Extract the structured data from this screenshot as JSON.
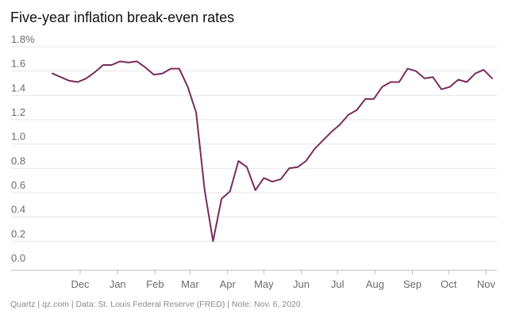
{
  "header": {
    "title": "Five-year inflation break-even rates"
  },
  "footer": {
    "source": "Quartz | qz.com | Data: St. Louis Federal Reserve (FRED) | Note: Nov. 6, 2020"
  },
  "colors": {
    "line": "#7a2c5a",
    "grid": "#e6e6e6",
    "axis": "#bdbdbd",
    "text": "#6b6b6b"
  },
  "chart_data": {
    "type": "line",
    "title": "Five-year inflation break-even rates",
    "xlabel": "",
    "ylabel": "",
    "ylim": [
      0,
      1.8
    ],
    "yticks": [
      0.0,
      0.2,
      0.4,
      0.6,
      0.8,
      1.0,
      1.2,
      1.4,
      1.6,
      1.8
    ],
    "ytick_labels": [
      "0.0",
      "0.2",
      "0.4",
      "0.6",
      "0.8",
      "1.0",
      "1.2",
      "1.4",
      "1.6",
      "1.8%"
    ],
    "xlim": [
      "2019-11-08",
      "2020-11-06"
    ],
    "xtick_labels": [
      "Dec",
      "Jan",
      "Feb",
      "Mar",
      "Apr",
      "May",
      "Jun",
      "Jul",
      "Aug",
      "Sep",
      "Oct",
      "Nov"
    ],
    "xtick_dates": [
      "2019-12-01",
      "2020-01-01",
      "2020-02-01",
      "2020-03-01",
      "2020-04-01",
      "2020-05-01",
      "2020-06-01",
      "2020-07-01",
      "2020-08-01",
      "2020-09-01",
      "2020-10-01",
      "2020-11-01"
    ],
    "grid": true,
    "series": [
      {
        "x": [
          "2019-11-08",
          "2019-11-15",
          "2019-11-22",
          "2019-11-29",
          "2019-12-06",
          "2019-12-13",
          "2019-12-20",
          "2019-12-27",
          "2020-01-03",
          "2020-01-10",
          "2020-01-17",
          "2020-01-24",
          "2020-01-31",
          "2020-02-07",
          "2020-02-14",
          "2020-02-21",
          "2020-02-28",
          "2020-03-06",
          "2020-03-13",
          "2020-03-20",
          "2020-03-27",
          "2020-04-03",
          "2020-04-10",
          "2020-04-17",
          "2020-04-24",
          "2020-05-01",
          "2020-05-08",
          "2020-05-15",
          "2020-05-22",
          "2020-05-29",
          "2020-06-05",
          "2020-06-12",
          "2020-06-19",
          "2020-06-26",
          "2020-07-03",
          "2020-07-10",
          "2020-07-17",
          "2020-07-24",
          "2020-07-31",
          "2020-08-07",
          "2020-08-14",
          "2020-08-21",
          "2020-08-28",
          "2020-09-04",
          "2020-09-11",
          "2020-09-18",
          "2020-09-25",
          "2020-10-02",
          "2020-10-09",
          "2020-10-16",
          "2020-10-23",
          "2020-10-30",
          "2020-11-06"
        ],
        "values": [
          1.58,
          1.55,
          1.52,
          1.51,
          1.54,
          1.59,
          1.65,
          1.65,
          1.68,
          1.67,
          1.68,
          1.63,
          1.57,
          1.58,
          1.62,
          1.62,
          1.47,
          1.26,
          0.62,
          0.2,
          0.55,
          0.61,
          0.86,
          0.81,
          0.62,
          0.72,
          0.69,
          0.71,
          0.8,
          0.81,
          0.86,
          0.96,
          1.03,
          1.1,
          1.16,
          1.24,
          1.28,
          1.37,
          1.37,
          1.47,
          1.51,
          1.51,
          1.62,
          1.6,
          1.54,
          1.55,
          1.45,
          1.47,
          1.53,
          1.51,
          1.58,
          1.61,
          1.54
        ]
      }
    ]
  }
}
